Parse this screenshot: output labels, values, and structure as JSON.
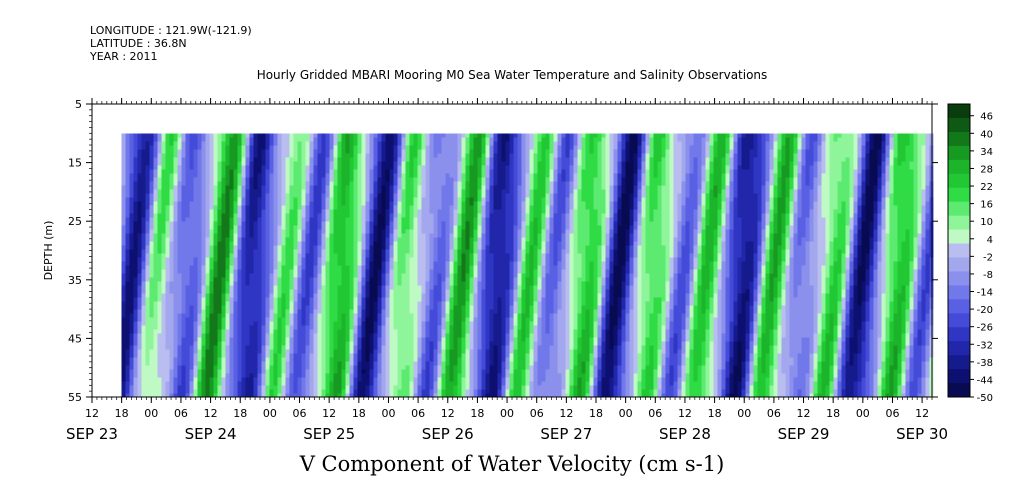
{
  "header": {
    "longitude": "LONGITUDE : 121.9W(-121.9)",
    "latitude": "LATITUDE : 36.8N",
    "year": "YEAR : 2011"
  },
  "chart_data": {
    "type": "heatmap",
    "title": "Hourly Gridded MBARI Mooring M0 Sea Water Temperature and Salinity Observations",
    "variable_label": "V Component of Water Velocity (cm s-1)",
    "ylabel": "DEPTH (m)",
    "ylim": [
      5,
      55
    ],
    "y_inverted": true,
    "yticks": [
      5,
      15,
      25,
      35,
      45,
      55
    ],
    "x_range_hours": [
      "SEP 23 12:00",
      "SEP 30 14:00"
    ],
    "hour_ticks": [
      "12",
      "18",
      "00",
      "06",
      "12",
      "18",
      "00",
      "06",
      "12",
      "18",
      "00",
      "06",
      "12",
      "18",
      "00",
      "06",
      "12",
      "18",
      "00",
      "06",
      "12",
      "18",
      "00",
      "06",
      "12",
      "18",
      "00",
      "06",
      "12"
    ],
    "day_labels": [
      "SEP 23",
      "SEP 24",
      "SEP 25",
      "SEP 26",
      "SEP 27",
      "SEP 28",
      "SEP 29",
      "SEP 30"
    ],
    "data_depth_range": [
      10,
      55
    ],
    "data_start": "SEP 23 18:00",
    "colorbar": {
      "min": -50,
      "max": 50,
      "step": 6,
      "labels": [
        "46",
        "40",
        "34",
        "28",
        "22",
        "16",
        "10",
        "4",
        "-2",
        "-8",
        "-14",
        "-20",
        "-26",
        "-32",
        "-38",
        "-44",
        "-50"
      ],
      "colors": [
        "#0a3d0e",
        "#0e5a14",
        "#12781a",
        "#179a22",
        "#1cb42a",
        "#22c833",
        "#2fdc45",
        "#5cea70",
        "#8ff59a",
        "#bff9c4",
        "#b9bdf0",
        "#a2a7ee",
        "#8a90ec",
        "#7178ea",
        "#5a60e4",
        "#444bd8",
        "#3036c4",
        "#2126aa",
        "#151a8c",
        "#0d1070",
        "#080a52"
      ]
    },
    "grid": false
  }
}
